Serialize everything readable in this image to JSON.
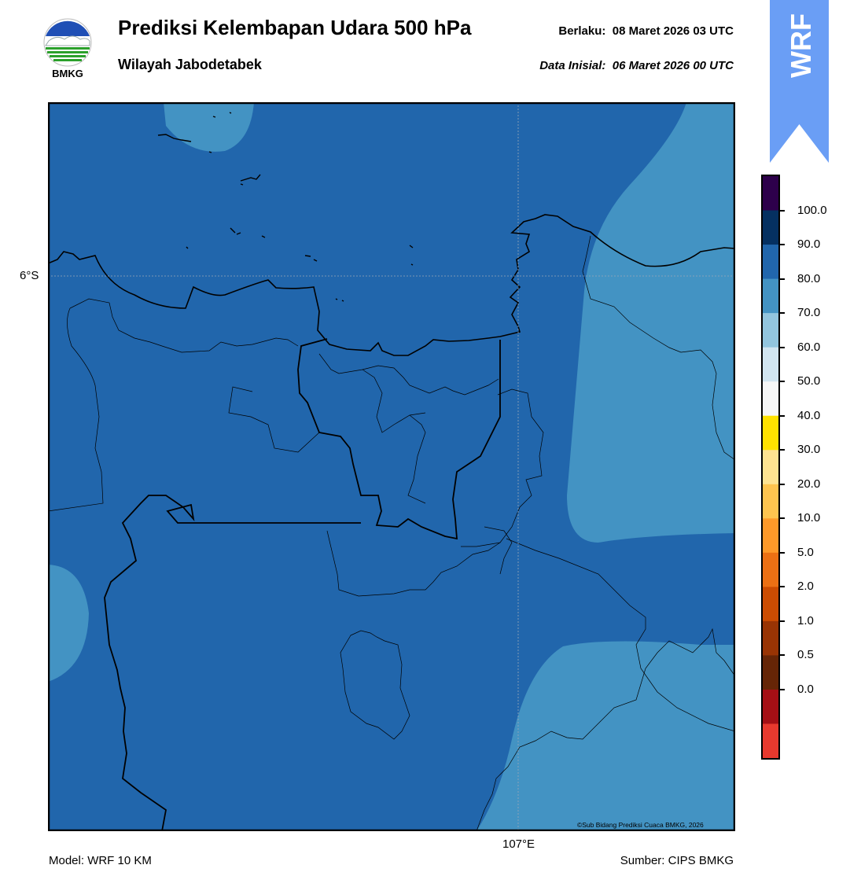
{
  "header": {
    "logo_text": "BMKG",
    "title": "Prediksi Kelembapan Udara 500 hPa",
    "subtitle": "Wilayah Jabodetabek",
    "valid_label": "Berlaku:",
    "valid_time": "08 Maret 2026 03 UTC",
    "init_label": "Data Inisial:",
    "init_time": "06 Maret 2026 00 UTC"
  },
  "badge": {
    "text": "WRF",
    "color": "#6a9ef5"
  },
  "map": {
    "lat_label": "6°S",
    "lon_label": "107°E",
    "credit": "©Sub Bidang Prediksi Cuaca BMKG, 2026",
    "fill_colors": {
      "band_80_90": "#2166ac",
      "band_70_80": "#4393c3"
    }
  },
  "colorbar": {
    "ticks": [
      "100.0",
      "90.0",
      "80.0",
      "70.0",
      "60.0",
      "50.0",
      "40.0",
      "30.0",
      "20.0",
      "10.0",
      "5.0",
      "2.0",
      "1.0",
      "0.5",
      "0.0"
    ],
    "colors_top_to_bottom": [
      "#2d004b",
      "#053061",
      "#2166ac",
      "#4393c3",
      "#92c5de",
      "#d1e5f0",
      "#f7f7f7",
      "#ffe200",
      "#fee391",
      "#fec44f",
      "#fe9929",
      "#ec7014",
      "#cc4c02",
      "#993404",
      "#662506",
      "#a50f15",
      "#e8392e"
    ]
  },
  "footer": {
    "model": "Model: WRF 10 KM",
    "source": "Sumber: CIPS BMKG"
  }
}
